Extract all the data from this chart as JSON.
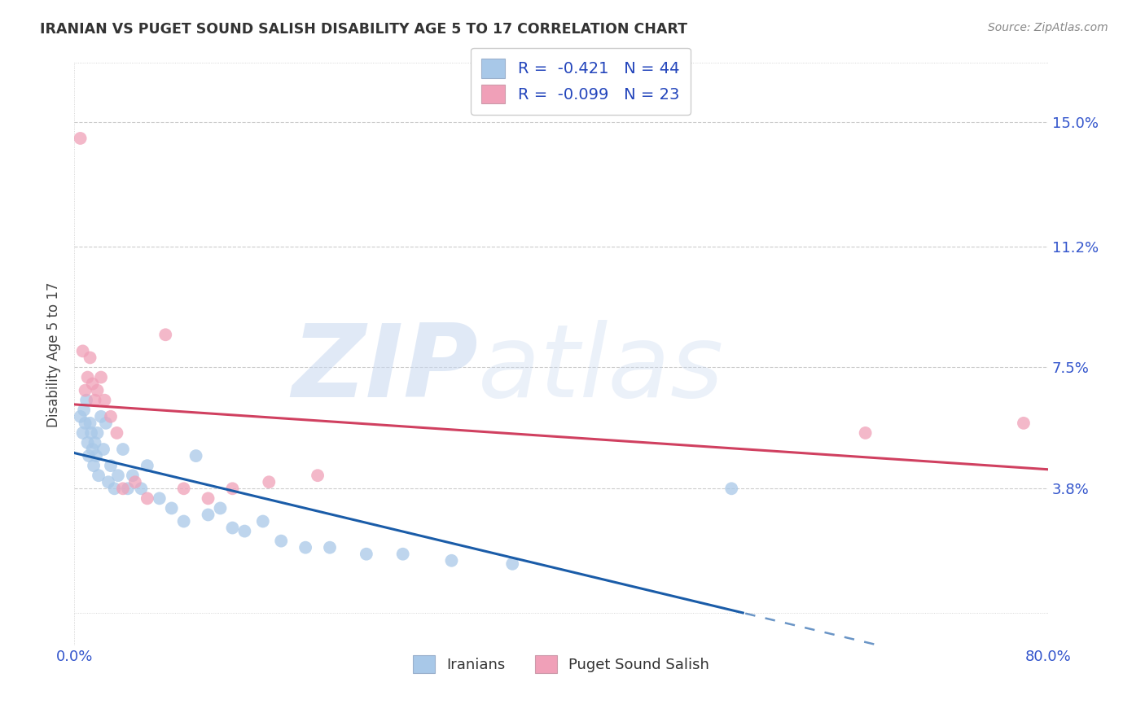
{
  "title": "IRANIAN VS PUGET SOUND SALISH DISABILITY AGE 5 TO 17 CORRELATION CHART",
  "source": "Source: ZipAtlas.com",
  "ylabel": "Disability Age 5 to 17",
  "xlim": [
    0.0,
    0.8
  ],
  "ylim": [
    -0.01,
    0.168
  ],
  "ytick_vals": [
    0.038,
    0.075,
    0.112,
    0.15
  ],
  "ytick_labels": [
    "3.8%",
    "7.5%",
    "11.2%",
    "15.0%"
  ],
  "legend_R1": "-0.421",
  "legend_N1": "44",
  "legend_R2": "-0.099",
  "legend_N2": "23",
  "legend_label1": "Iranians",
  "legend_label2": "Puget Sound Salish",
  "color_blue": "#a8c8e8",
  "color_pink": "#f0a0b8",
  "line_color_blue": "#1a5ca8",
  "line_color_pink": "#d04060",
  "watermark_zip": "ZIP",
  "watermark_atlas": "atlas",
  "iranians_x": [
    0.005,
    0.007,
    0.008,
    0.009,
    0.01,
    0.011,
    0.012,
    0.013,
    0.014,
    0.015,
    0.016,
    0.017,
    0.018,
    0.019,
    0.02,
    0.022,
    0.024,
    0.026,
    0.028,
    0.03,
    0.033,
    0.036,
    0.04,
    0.044,
    0.048,
    0.055,
    0.06,
    0.07,
    0.08,
    0.09,
    0.1,
    0.11,
    0.12,
    0.13,
    0.14,
    0.155,
    0.17,
    0.19,
    0.21,
    0.24,
    0.27,
    0.31,
    0.36,
    0.54
  ],
  "iranians_y": [
    0.06,
    0.055,
    0.062,
    0.058,
    0.065,
    0.052,
    0.048,
    0.058,
    0.055,
    0.05,
    0.045,
    0.052,
    0.048,
    0.055,
    0.042,
    0.06,
    0.05,
    0.058,
    0.04,
    0.045,
    0.038,
    0.042,
    0.05,
    0.038,
    0.042,
    0.038,
    0.045,
    0.035,
    0.032,
    0.028,
    0.048,
    0.03,
    0.032,
    0.026,
    0.025,
    0.028,
    0.022,
    0.02,
    0.02,
    0.018,
    0.018,
    0.016,
    0.015,
    0.038
  ],
  "salish_x": [
    0.005,
    0.007,
    0.009,
    0.011,
    0.013,
    0.015,
    0.017,
    0.019,
    0.022,
    0.025,
    0.03,
    0.035,
    0.04,
    0.05,
    0.06,
    0.075,
    0.09,
    0.11,
    0.13,
    0.16,
    0.2,
    0.65,
    0.78
  ],
  "salish_y": [
    0.145,
    0.08,
    0.068,
    0.072,
    0.078,
    0.07,
    0.065,
    0.068,
    0.072,
    0.065,
    0.06,
    0.055,
    0.038,
    0.04,
    0.035,
    0.085,
    0.038,
    0.035,
    0.038,
    0.04,
    0.042,
    0.055,
    0.058
  ]
}
